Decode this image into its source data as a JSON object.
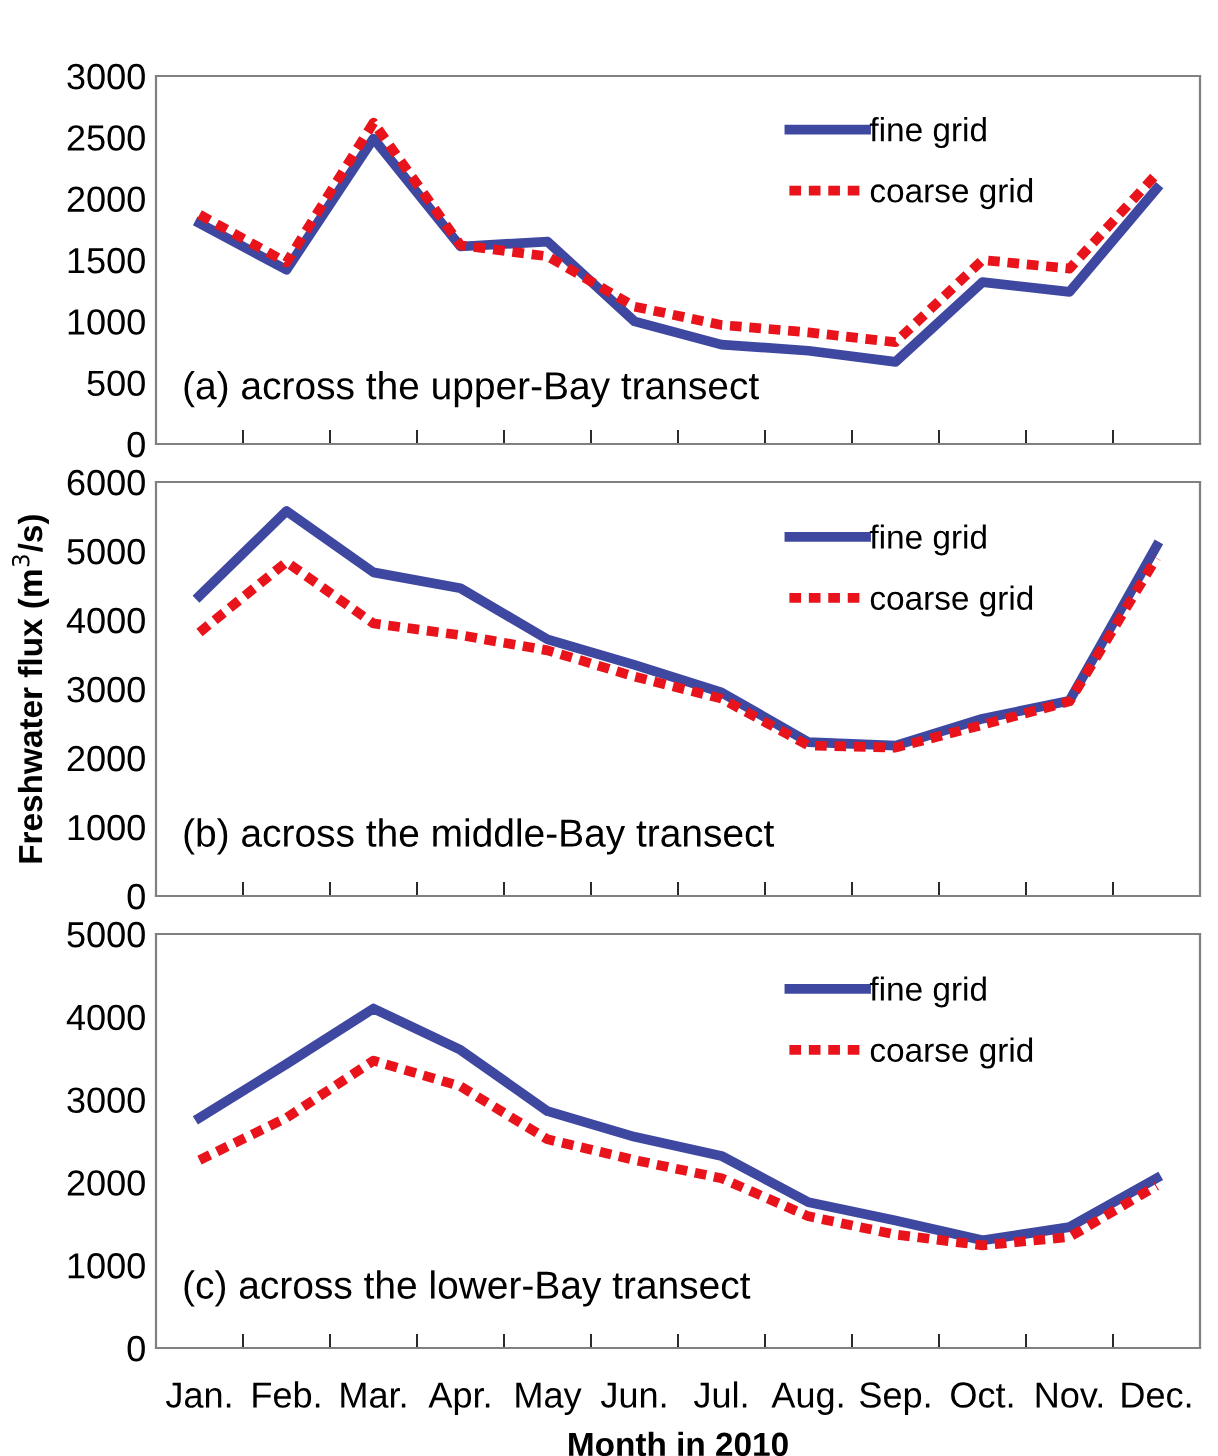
{
  "chart_data": [
    {
      "type": "line",
      "categories": [
        null,
        null,
        null,
        null,
        null,
        null,
        null,
        null,
        null,
        null,
        null,
        null
      ],
      "ylim": [
        0,
        3000
      ],
      "yticks": [
        0,
        500,
        1000,
        1500,
        2000,
        2500,
        3000
      ],
      "tick_labels": "y",
      "legend": "top right",
      "grid": false,
      "annotations": [
        "(a) across the upper-Bay transect"
      ],
      "series": [
        {
          "name": "fine grid",
          "color": "#3f48a0",
          "line_style": "solid",
          "values": [
            1800,
            1420,
            2490,
            1610,
            1650,
            1000,
            810,
            760,
            670,
            1320,
            1240,
            2080
          ]
        },
        {
          "name": "coarse grid",
          "color": "#e8131b",
          "line_style": "dotted",
          "values": [
            1870,
            1480,
            2620,
            1620,
            1530,
            1120,
            970,
            910,
            830,
            1500,
            1430,
            2200
          ]
        }
      ]
    },
    {
      "type": "line",
      "categories": [
        null,
        null,
        null,
        null,
        null,
        null,
        null,
        null,
        null,
        null,
        null,
        null
      ],
      "ylim": [
        0,
        6000
      ],
      "yticks": [
        0,
        1000,
        2000,
        3000,
        4000,
        5000,
        6000
      ],
      "tick_labels": "y",
      "legend": "top right",
      "grid": false,
      "ylabel": "Freshwater flux (m$^{3}$/s)",
      "annotations": [
        "(b) across the middle-Bay transect"
      ],
      "series": [
        {
          "name": "fine grid",
          "color": "#3f48a0",
          "line_style": "solid",
          "values": [
            4350,
            5580,
            4690,
            4460,
            3720,
            3350,
            2950,
            2230,
            2180,
            2570,
            2830,
            5070
          ]
        },
        {
          "name": "coarse grid",
          "color": "#e8131b",
          "line_style": "dotted",
          "values": [
            3820,
            4840,
            3950,
            3780,
            3560,
            3180,
            2860,
            2180,
            2150,
            2480,
            2820,
            4900
          ]
        }
      ]
    },
    {
      "type": "line",
      "categories": [
        "Jan.",
        "Feb.",
        "Mar.",
        "Apr.",
        "May",
        "Jun.",
        "Jul.",
        "Aug.",
        "Sep.",
        "Oct.",
        "Nov.",
        "Dec."
      ],
      "ylim": [
        0,
        5000
      ],
      "yticks": [
        0,
        1000,
        2000,
        3000,
        4000,
        5000
      ],
      "legend": "top right",
      "grid": false,
      "xlabel": "Month in 2010",
      "annotations": [
        "(c) across the lower-Bay transect"
      ],
      "series": [
        {
          "name": "fine grid",
          "color": "#3f48a0",
          "line_style": "solid",
          "values": [
            2780,
            3430,
            4100,
            3600,
            2860,
            2550,
            2320,
            1760,
            1540,
            1300,
            1460,
            2050
          ]
        },
        {
          "name": "coarse grid",
          "color": "#e8131b",
          "line_style": "dotted",
          "values": [
            2270,
            2780,
            3470,
            3160,
            2520,
            2270,
            2050,
            1590,
            1370,
            1240,
            1340,
            1960
          ]
        }
      ]
    }
  ]
}
